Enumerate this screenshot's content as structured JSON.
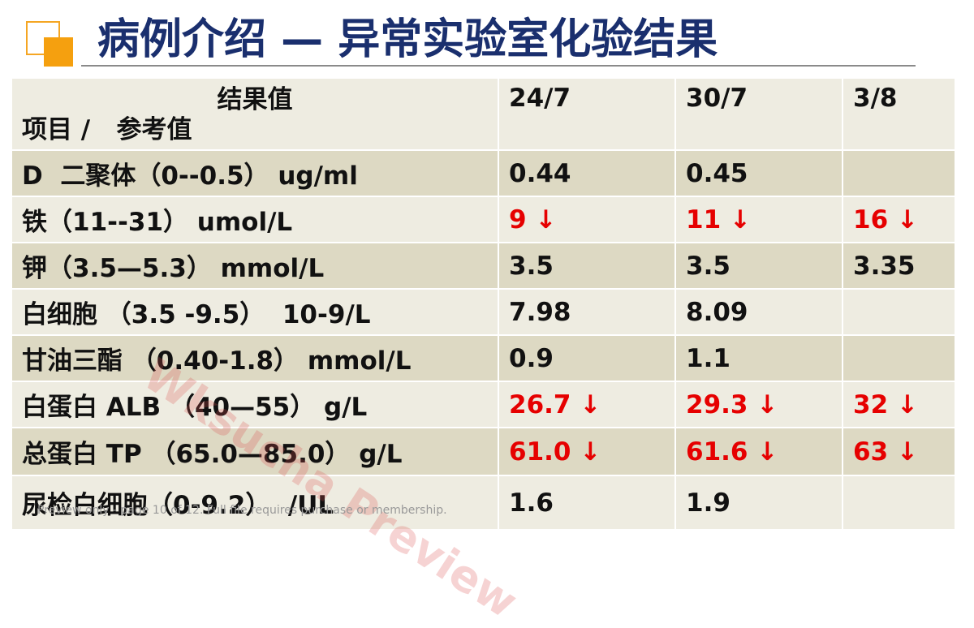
{
  "header": {
    "title": "病例介绍 — 异常实验室化验结果"
  },
  "table": {
    "corner_top": "结果值",
    "corner_bottom": "项目 /   参考值",
    "columns": [
      "24/7",
      "30/7",
      "3/8"
    ],
    "rows": [
      {
        "label": "D  二聚体（0--0.5） ug/ml",
        "cells": [
          "0.44",
          "0.45",
          null
        ]
      },
      {
        "label": "铁（11--31） umol/L",
        "cells": [
          {
            "text": "9 ↓",
            "color": "#e60000"
          },
          {
            "text": "11 ↓",
            "color": "#e60000"
          },
          {
            "text": "16 ↓",
            "color": "#e60000"
          }
        ]
      },
      {
        "label": "钾（3.5—5.3） mmol/L",
        "cells": [
          "3.5",
          "3.5",
          "3.35"
        ]
      },
      {
        "label": "白细胞 （3.5 -9.5）  10-9/L",
        "cells": [
          "7.98",
          "8.09",
          null
        ]
      },
      {
        "label": "甘油三酯 （0.40-1.8） mmol/L",
        "cells": [
          "0.9",
          "1.1",
          null
        ]
      },
      {
        "label": "白蛋白 ALB （40—55） g/L",
        "cells": [
          {
            "text": "26.7 ↓",
            "color": "#e60000"
          },
          {
            "text": "29.3 ↓",
            "color": "#e60000"
          },
          {
            "text": "32 ↓",
            "color": "#e60000"
          }
        ]
      },
      {
        "label": "总蛋白 TP （65.0—85.0） g/L",
        "cells": [
          {
            "text": "61.0 ↓",
            "color": "#e60000"
          },
          {
            "text": "61.6 ↓",
            "color": "#e60000"
          },
          {
            "text": "63 ↓",
            "color": "#e60000"
          }
        ]
      },
      {
        "label": "尿检白细胞（0-9.2）  /UL",
        "cells": [
          "1.6",
          "1.9",
          null
        ]
      }
    ]
  },
  "watermark": "Wksucha Preview",
  "footer": "Preview only - page 10 of 12. Full file requires purchase or membership."
}
